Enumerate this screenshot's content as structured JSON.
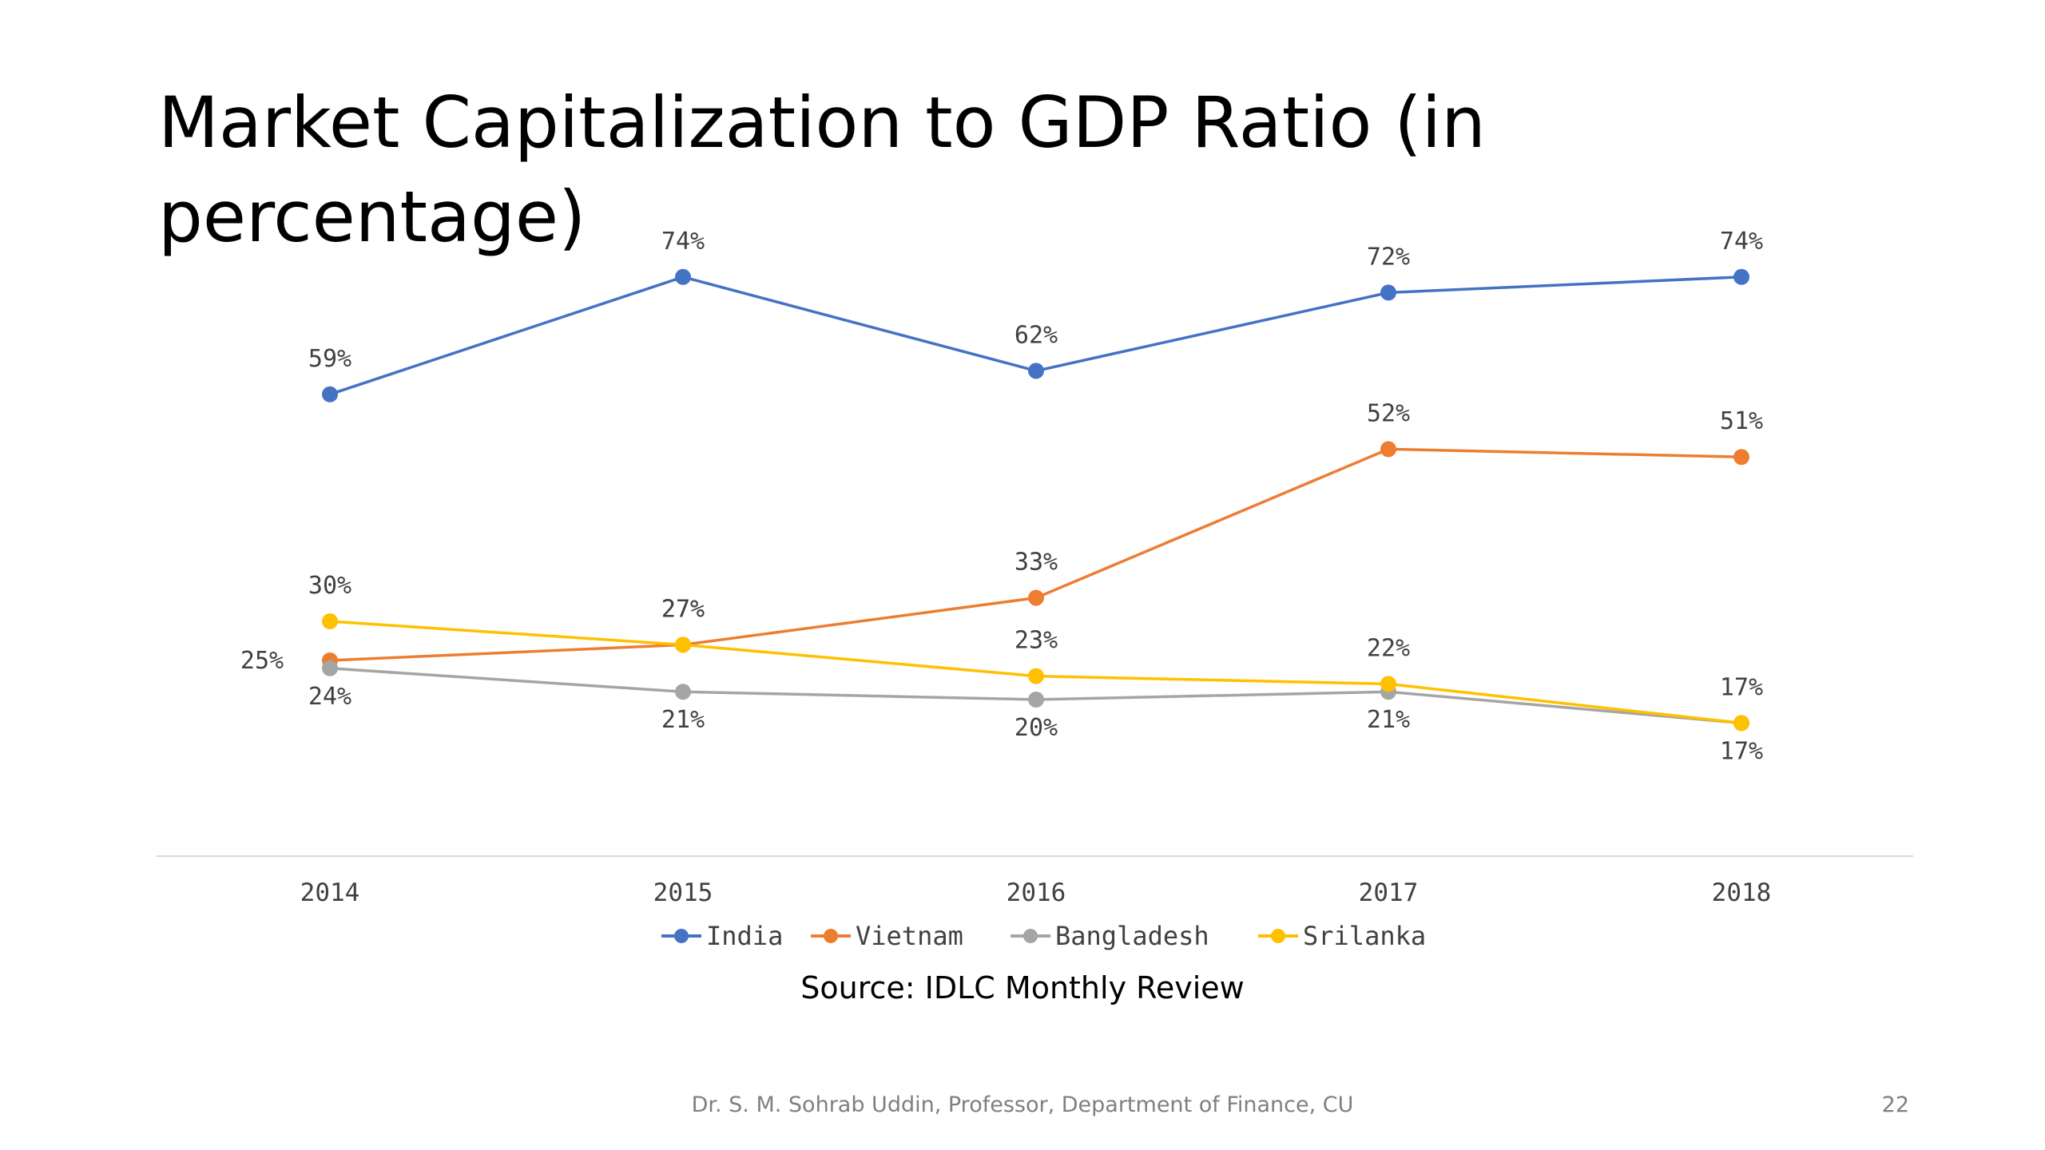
{
  "slide": {
    "title": "Market Capitalization to GDP Ratio (in percentage)",
    "source": "Source: IDLC Monthly Review",
    "footer": "Dr. S. M. Sohrab Uddin, Professor, Department of Finance, CU",
    "page_number": "22"
  },
  "chart_data": {
    "type": "line",
    "title": "",
    "xlabel": "",
    "ylabel": "",
    "categories": [
      "2014",
      "2015",
      "2016",
      "2017",
      "2018"
    ],
    "ylim": [
      0,
      90
    ],
    "grid": false,
    "legend": "bottom",
    "series": [
      {
        "name": "India",
        "color": "#4472c4",
        "values": [
          59,
          74,
          62,
          72,
          74
        ],
        "labels": [
          "59%",
          "74%",
          "62%",
          "72%",
          "74%"
        ]
      },
      {
        "name": "Vietnam",
        "color": "#ed7d31",
        "values": [
          25,
          27,
          33,
          52,
          51
        ],
        "labels": [
          "25%",
          "27%",
          "33%",
          "52%",
          "51%"
        ]
      },
      {
        "name": "Bangladesh",
        "color": "#a5a5a5",
        "values": [
          24,
          21,
          20,
          21,
          17
        ],
        "labels": [
          "24%",
          "21%",
          "20%",
          "21%",
          "17%"
        ]
      },
      {
        "name": "Srilanka",
        "color": "#ffc000",
        "values": [
          30,
          27,
          23,
          22,
          17
        ],
        "labels": [
          "30%",
          "27%",
          "23%",
          "22%",
          "17%"
        ]
      }
    ]
  }
}
